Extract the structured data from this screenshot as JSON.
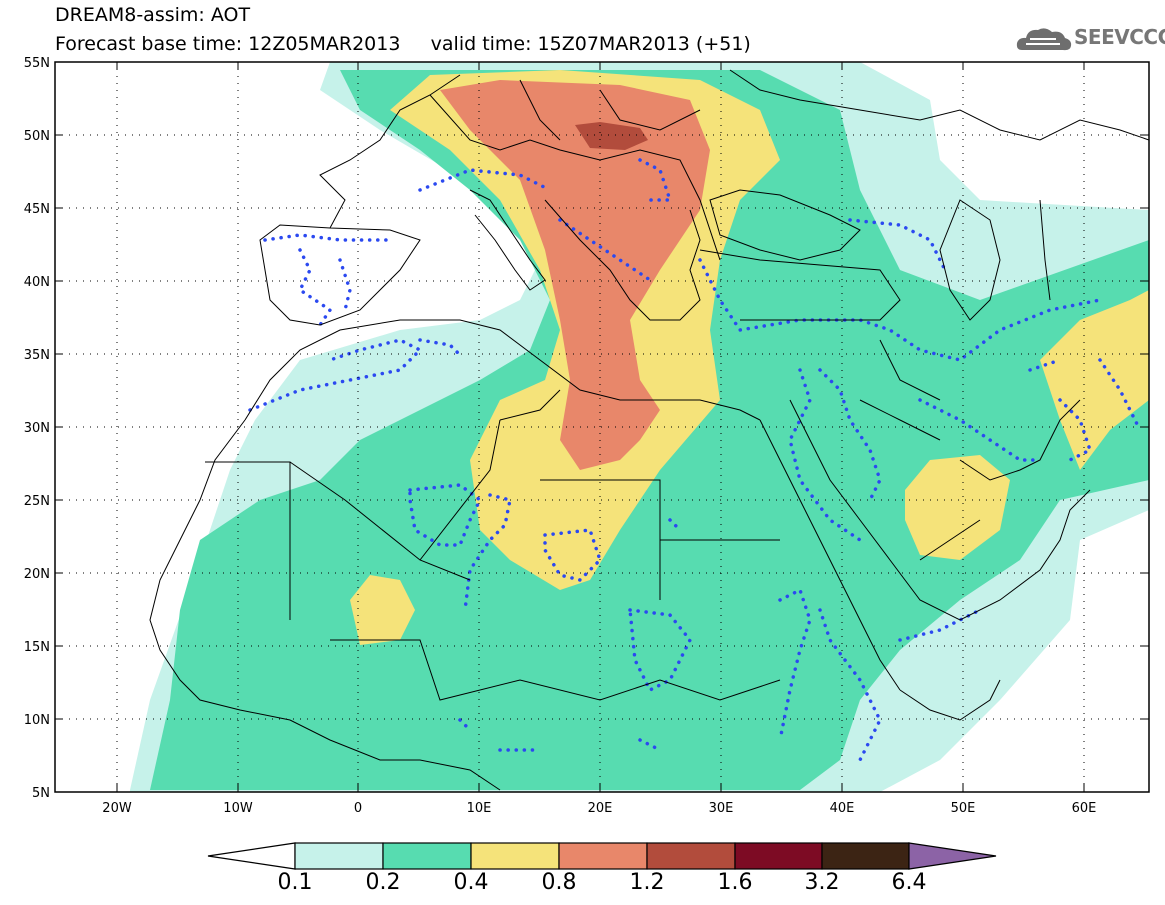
{
  "header": {
    "title_line1": "DREAM8-assim: AOT",
    "title_line2": "Forecast base time: 12Z05MAR2013     valid time: 15Z07MAR2013 (+51)"
  },
  "logo": {
    "text": "SEEVCCC",
    "icon": "cloud-icon"
  },
  "map": {
    "projection": "lat-lon",
    "lon_range": [
      -25,
      65
    ],
    "lat_range": [
      5,
      55
    ],
    "lon_ticks": [
      {
        "value": -20,
        "label": "20W"
      },
      {
        "value": -10,
        "label": "10W"
      },
      {
        "value": 0,
        "label": "0"
      },
      {
        "value": 10,
        "label": "10E"
      },
      {
        "value": 20,
        "label": "20E"
      },
      {
        "value": 30,
        "label": "30E"
      },
      {
        "value": 40,
        "label": "40E"
      },
      {
        "value": 50,
        "label": "50E"
      },
      {
        "value": 60,
        "label": "60E"
      }
    ],
    "lat_ticks": [
      {
        "value": 55,
        "label": "55N"
      },
      {
        "value": 50,
        "label": "50N"
      },
      {
        "value": 45,
        "label": "45N"
      },
      {
        "value": 40,
        "label": "40N"
      },
      {
        "value": 35,
        "label": "35N"
      },
      {
        "value": 30,
        "label": "30N"
      },
      {
        "value": 25,
        "label": "25N"
      },
      {
        "value": 20,
        "label": "20N"
      },
      {
        "value": 15,
        "label": "15N"
      },
      {
        "value": 10,
        "label": "10N"
      },
      {
        "value": 5,
        "label": "5N"
      }
    ],
    "grid": "dotted"
  },
  "colorbar": {
    "levels": [
      "0.1",
      "0.2",
      "0.4",
      "0.8",
      "1.2",
      "1.6",
      "3.2",
      "6.4"
    ],
    "colors": [
      "#ffffff",
      "#c6f2ea",
      "#57dcb0",
      "#f5e37a",
      "#e8876a",
      "#b24c3c",
      "#7d0b24",
      "#3c2414",
      "#8c63a6"
    ]
  }
}
